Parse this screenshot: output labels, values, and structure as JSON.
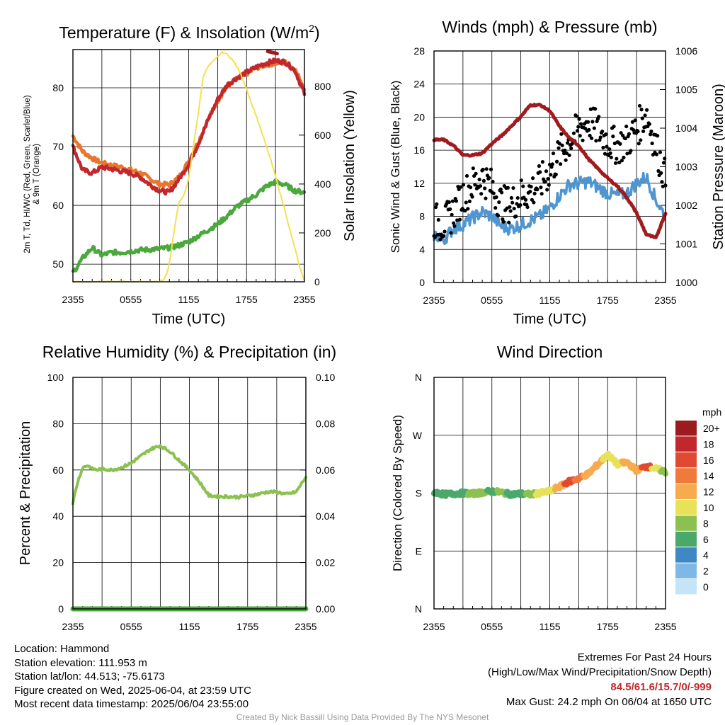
{
  "chart_data": [
    {
      "type": "line",
      "title": "Temperature (F) & Insolation (W/m²)",
      "xlabel": "Time (UTC)",
      "ylabel": "2m T, Td, HI/WC (Red, Green, Scarlet/Blue) & 9m T (Orange)",
      "y2label": "Solar Insolation (Yellow)",
      "xticks": [
        "2355",
        "0555",
        "1155",
        "1755",
        "2355"
      ],
      "ylim": [
        47,
        86.5
      ],
      "yticks": [
        50,
        60,
        70,
        80
      ],
      "y2lim": [
        0,
        950
      ],
      "y2ticks": [
        0,
        200,
        400,
        600,
        800
      ],
      "grid": true,
      "series": [
        {
          "axis": "left",
          "color": "#e8762c",
          "x": [
            0,
            1,
            2,
            3,
            4,
            5,
            6,
            7,
            8,
            9,
            10,
            11,
            12,
            13,
            14,
            15,
            16,
            17,
            18,
            19,
            20,
            21,
            22,
            23,
            24
          ],
          "y": [
            71.8,
            69.2,
            68,
            67.2,
            66.8,
            66.5,
            66,
            65.5,
            64.5,
            63.6,
            63.5,
            64.8,
            67.5,
            70.8,
            74.5,
            77.8,
            80.2,
            81.5,
            82.4,
            83.4,
            83.9,
            84.2,
            84.3,
            83.2,
            80
          ]
        },
        {
          "axis": "left",
          "color": "#c1272d",
          "x": [
            0,
            1,
            2,
            3,
            4,
            5,
            6,
            7,
            8,
            9,
            10,
            11,
            12,
            13,
            14,
            15,
            16,
            17,
            18,
            19,
            20,
            21,
            22,
            23,
            24
          ],
          "y": [
            70,
            66,
            65.5,
            66.5,
            66.2,
            65.8,
            65.5,
            64.8,
            63.5,
            62.5,
            62.2,
            64.5,
            67,
            70.5,
            74.5,
            78,
            80.5,
            81.7,
            82.6,
            83.5,
            84.2,
            84.6,
            84.4,
            83,
            79
          ]
        },
        {
          "axis": "left",
          "color": "#4aa83c",
          "x": [
            0,
            1,
            2,
            3,
            4,
            5,
            6,
            7,
            8,
            9,
            10,
            11,
            12,
            13,
            14,
            15,
            16,
            17,
            18,
            19,
            20,
            21,
            22,
            23,
            24
          ],
          "y": [
            48.5,
            51,
            52.8,
            51.5,
            52,
            52,
            52.2,
            52.4,
            52.5,
            52.6,
            52.8,
            53.2,
            53.8,
            54.8,
            55.8,
            56.8,
            58.2,
            59.8,
            60.8,
            61.8,
            63.2,
            64,
            63.5,
            62.5,
            62.2
          ]
        },
        {
          "axis": "right",
          "color": "#f5e050",
          "x": [
            0,
            1,
            2,
            3,
            4,
            5,
            6,
            7,
            8,
            9,
            9.3,
            9.7,
            10,
            10.5,
            11,
            11.5,
            12,
            12.5,
            13,
            13.5,
            14,
            14.5,
            15,
            15.5,
            16,
            16.5,
            17,
            17.5,
            18,
            18.5,
            19,
            19.5,
            20,
            20.5,
            21,
            21.5,
            22,
            22.5,
            23,
            23.5,
            24
          ],
          "y": [
            0,
            0,
            0,
            0,
            0,
            0,
            0,
            0,
            0,
            0,
            5,
            30,
            75,
            210,
            330,
            350,
            420,
            560,
            690,
            840,
            880,
            900,
            920,
            940,
            930,
            910,
            880,
            840,
            790,
            730,
            680,
            620,
            560,
            500,
            430,
            360,
            290,
            210,
            140,
            60,
            0
          ]
        }
      ]
    },
    {
      "type": "line",
      "title": "Winds (mph) & Pressure (mb)",
      "xlabel": "Time (UTC)",
      "ylabel": "Sonic Wind & Gust (Blue, Black)",
      "y2label": "Station Pressure (Maroon)",
      "xticks": [
        "2355",
        "0555",
        "1155",
        "1755",
        "2355"
      ],
      "ylim": [
        0,
        28
      ],
      "yticks": [
        0,
        4,
        8,
        12,
        16,
        20,
        24,
        28
      ],
      "y2lim": [
        1000,
        1006
      ],
      "y2ticks": [
        1000,
        1001,
        1002,
        1003,
        1004,
        1005,
        1006
      ],
      "grid": true,
      "series": [
        {
          "axis": "left",
          "color": "#4f95d0",
          "x": [
            0,
            1,
            2,
            3,
            4,
            5,
            6,
            7,
            8,
            9,
            10,
            11,
            12,
            13,
            14,
            15,
            16,
            17,
            18,
            19,
            20,
            21,
            22,
            23,
            24
          ],
          "y": [
            5.8,
            5.2,
            6.5,
            7,
            7.8,
            8.5,
            8,
            6.8,
            6.5,
            7,
            7.5,
            8,
            9,
            10.5,
            11.8,
            12,
            12.2,
            11.5,
            10.8,
            10.5,
            10.8,
            12,
            12.8,
            10,
            8
          ]
        },
        {
          "axis": "left",
          "color": "#000000",
          "x": [
            0,
            1,
            2,
            3,
            4,
            5,
            6,
            7,
            8,
            9,
            10,
            11,
            12,
            13,
            14,
            15,
            16,
            17,
            18,
            19,
            20,
            21,
            22,
            23,
            24
          ],
          "y": [
            7.5,
            7,
            8.5,
            10.5,
            11.8,
            12.8,
            11.5,
            9.5,
            9.5,
            10.5,
            11,
            12,
            13.5,
            15.5,
            17,
            18.5,
            19.5,
            18.5,
            17,
            16.5,
            17,
            18.5,
            20.5,
            16.5,
            12.5
          ]
        },
        {
          "axis": "right",
          "color": "#a01a1e",
          "x": [
            0,
            1,
            2,
            3,
            4,
            5,
            6,
            7,
            8,
            9,
            10,
            11,
            12,
            13,
            14,
            15,
            16,
            17,
            18,
            19,
            20,
            21,
            22,
            23,
            24
          ],
          "y": [
            1003.7,
            1003.7,
            1003.55,
            1003.3,
            1003.3,
            1003.35,
            1003.6,
            1003.8,
            1004.05,
            1004.3,
            1004.6,
            1004.6,
            1004.45,
            1004.05,
            1003.75,
            1003.55,
            1003.2,
            1002.95,
            1002.7,
            1002.5,
            1002.2,
            1001.8,
            1001.25,
            1001.15,
            1001.8
          ]
        }
      ]
    },
    {
      "type": "line",
      "title": "Relative Humidity (%) & Precipitation (in)",
      "ylabel": "Percent & Precipitation",
      "xticks": [
        "2355",
        "0555",
        "1155",
        "1755",
        "2355"
      ],
      "ylim": [
        0,
        100
      ],
      "yticks": [
        0,
        20,
        40,
        60,
        80,
        100
      ],
      "y2lim": [
        0,
        0.1
      ],
      "y2ticks": [
        "0.00",
        "0.02",
        "0.04",
        "0.06",
        "0.08",
        "0.10"
      ],
      "grid": true,
      "series": [
        {
          "axis": "left",
          "color": "#8cc152",
          "x": [
            0,
            0.5,
            1,
            1.5,
            2,
            2.5,
            3,
            4,
            5,
            6,
            7,
            8,
            9,
            10,
            11,
            12,
            13,
            14,
            15,
            16,
            17,
            18,
            19,
            20,
            21,
            22,
            23,
            24
          ],
          "y": [
            46,
            55,
            61,
            62,
            60.5,
            60,
            60.5,
            60,
            61,
            63,
            66,
            69,
            70.5,
            68,
            64,
            60,
            55,
            49,
            48.5,
            48.5,
            48.3,
            48.8,
            49.5,
            50.5,
            50.5,
            49.5,
            50.5,
            57
          ]
        },
        {
          "axis": "right",
          "color": "#4aa83c",
          "x": [
            0,
            24
          ],
          "y": [
            0,
            0
          ]
        }
      ]
    },
    {
      "type": "scatter",
      "title": "Wind Direction",
      "ylabel": "Direction (Colored By Speed)",
      "xticks": [
        "2355",
        "0555",
        "1155",
        "1755",
        "2355"
      ],
      "yticks": [
        "N",
        "E",
        "S",
        "W",
        "N"
      ],
      "ylim": [
        0,
        360
      ],
      "legend_title": "mph",
      "legend_labels": [
        "20+",
        "18",
        "16",
        "14",
        "12",
        "10",
        "8",
        "6",
        "4",
        "2",
        "0"
      ],
      "legend_colors": [
        "#9b1b1e",
        "#c1272d",
        "#e04a33",
        "#f07a3a",
        "#f8aa4e",
        "#e8e25a",
        "#8cc152",
        "#4aa86b",
        "#3f88c5",
        "#7fb8e6",
        "#c4e4f8"
      ],
      "grid": true,
      "x": [
        0,
        1,
        2,
        3,
        4,
        5,
        6,
        7,
        8,
        9,
        10,
        11,
        12,
        13,
        14,
        15,
        16,
        17,
        18,
        19,
        20,
        21,
        22,
        23,
        24
      ],
      "y": [
        182,
        178,
        179,
        180,
        179,
        181,
        183,
        181,
        178,
        179,
        178,
        180,
        183,
        190,
        198,
        203,
        210,
        225,
        240,
        225,
        228,
        215,
        222,
        218,
        213
      ],
      "speed": [
        6,
        5,
        6,
        6,
        7,
        7,
        5,
        7,
        6,
        6,
        7,
        9,
        10,
        12,
        15,
        13,
        12,
        11,
        10,
        9,
        11,
        12,
        15,
        10,
        8
      ]
    }
  ],
  "info": {
    "location": "Location: Hammond",
    "elevation": "Station elevation: 111.953 m",
    "latlon": "Station lat/lon: 44.513; -75.6173",
    "created": "Figure created on Wed, 2025-06-04, at 23:59 UTC",
    "recent": "Most recent data timestamp: 2025/06/04 23:55:00"
  },
  "extremes": {
    "title": "Extremes For Past 24 Hours",
    "subtitle": "(High/Low/Max Wind/Precipitation/Snow Depth)",
    "values": "84.5/61.6/15.7/0/-999",
    "gust": "Max Gust: 24.2 mph On 06/04 at 1650 UTC"
  },
  "credit": "Created By Nick Bassill Using Data Provided By The NYS Mesonet"
}
